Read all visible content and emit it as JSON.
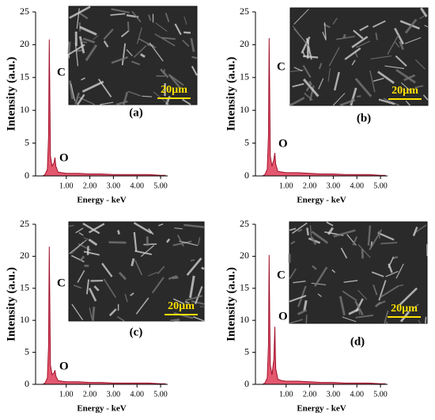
{
  "chart_data": [
    {
      "type": "line",
      "panel_label": "(a)",
      "x_label": "Energy - keV",
      "y_label": "Intensity (a.u.)",
      "annotations": [
        "C",
        "O"
      ],
      "scale_bar": "20µm",
      "color": "#d9203f",
      "xlim": [
        -0.3,
        5.3
      ],
      "xticks": [
        {
          "value": 1,
          "label": "1.00"
        },
        {
          "value": 2,
          "label": "2.00"
        },
        {
          "value": 3,
          "label": "3.00"
        },
        {
          "value": 4,
          "label": "4.00"
        },
        {
          "value": 5,
          "label": "5.00"
        }
      ],
      "ylim": [
        0,
        25
      ],
      "yticks": [
        0,
        5,
        10,
        15,
        20,
        25
      ],
      "x": [
        0.0,
        0.1,
        0.2,
        0.25,
        0.28,
        0.3,
        0.33,
        0.4,
        0.48,
        0.52,
        0.56,
        0.65,
        0.8,
        1.0,
        1.5,
        2.0,
        2.5,
        3.0,
        3.5,
        4.0,
        4.5,
        5.0,
        5.2
      ],
      "values": [
        0,
        0.2,
        1,
        6,
        20.8,
        14,
        3,
        1.5,
        2,
        2.8,
        1.5,
        0.6,
        0.5,
        0.4,
        0.4,
        0.3,
        0.3,
        0.2,
        0.2,
        0.2,
        0.2,
        0.1,
        0.1
      ]
    },
    {
      "type": "line",
      "panel_label": "(b)",
      "x_label": "Energy - keV",
      "y_label": "Intensity (a.u.)",
      "annotations": [
        "C",
        "O"
      ],
      "scale_bar": "20µm",
      "color": "#d9203f",
      "xlim": [
        -0.3,
        5.3
      ],
      "xticks": [
        {
          "value": 1,
          "label": "1.00"
        },
        {
          "value": 2,
          "label": "2.00"
        },
        {
          "value": 3,
          "label": "3.00"
        },
        {
          "value": 4,
          "label": "4.00"
        },
        {
          "value": 5,
          "label": "5.00"
        }
      ],
      "ylim": [
        0,
        25
      ],
      "yticks": [
        0,
        5,
        10,
        15,
        20,
        25
      ],
      "x": [
        0.0,
        0.1,
        0.2,
        0.25,
        0.28,
        0.3,
        0.33,
        0.4,
        0.48,
        0.52,
        0.56,
        0.65,
        0.8,
        1.0,
        1.5,
        2.0,
        2.5,
        3.0,
        3.5,
        4.0,
        4.5,
        5.0,
        5.2
      ],
      "values": [
        0,
        0.2,
        1,
        6,
        21,
        14,
        3,
        1.5,
        2.5,
        3.5,
        1.8,
        0.7,
        0.6,
        0.5,
        0.5,
        0.4,
        0.3,
        0.3,
        0.2,
        0.2,
        0.2,
        0.1,
        0.1
      ]
    },
    {
      "type": "line",
      "panel_label": "(c)",
      "x_label": "Energy - keV",
      "y_label": "Intensity (a.u.)",
      "annotations": [
        "C",
        "O"
      ],
      "scale_bar": "20µm",
      "color": "#d9203f",
      "xlim": [
        -0.3,
        5.3
      ],
      "xticks": [
        {
          "value": 1,
          "label": "1.00"
        },
        {
          "value": 2,
          "label": "2.00"
        },
        {
          "value": 3,
          "label": "3.00"
        },
        {
          "value": 4,
          "label": "4.00"
        },
        {
          "value": 5,
          "label": "5.00"
        }
      ],
      "ylim": [
        0,
        25
      ],
      "yticks": [
        0,
        5,
        10,
        15,
        20,
        25
      ],
      "x": [
        0.0,
        0.1,
        0.2,
        0.25,
        0.28,
        0.3,
        0.33,
        0.4,
        0.48,
        0.52,
        0.56,
        0.65,
        0.8,
        1.0,
        1.5,
        2.0,
        2.5,
        3.0,
        3.5,
        4.0,
        4.5,
        5.0,
        5.2
      ],
      "values": [
        0,
        0.2,
        1,
        6,
        21.5,
        14,
        3,
        1.5,
        1.8,
        2.2,
        1.3,
        0.6,
        0.5,
        0.4,
        0.4,
        0.3,
        0.3,
        0.2,
        0.2,
        0.2,
        0.2,
        0.1,
        0.1
      ]
    },
    {
      "type": "line",
      "panel_label": "(d)",
      "x_label": "Energy - keV",
      "y_label": "Intensity (a.u.)",
      "annotations": [
        "C",
        "O"
      ],
      "scale_bar": "20µm",
      "color": "#d9203f",
      "xlim": [
        -0.3,
        5.3
      ],
      "xticks": [
        {
          "value": 1,
          "label": "1.00"
        },
        {
          "value": 2,
          "label": "2.00"
        },
        {
          "value": 3,
          "label": "3.00"
        },
        {
          "value": 4,
          "label": "4.00"
        },
        {
          "value": 5,
          "label": "5.00"
        }
      ],
      "ylim": [
        0,
        25
      ],
      "yticks": [
        0,
        5,
        10,
        15,
        20,
        25
      ],
      "x": [
        0.0,
        0.1,
        0.2,
        0.25,
        0.28,
        0.3,
        0.33,
        0.4,
        0.48,
        0.52,
        0.56,
        0.65,
        0.8,
        1.0,
        1.5,
        2.0,
        2.5,
        3.0,
        3.5,
        4.0,
        4.5,
        5.0,
        5.2
      ],
      "values": [
        0,
        0.2,
        1,
        6,
        20.2,
        12,
        3,
        1.5,
        4,
        9,
        2.5,
        0.8,
        0.6,
        0.5,
        0.5,
        0.4,
        0.3,
        0.3,
        0.2,
        0.2,
        0.2,
        0.1,
        0.1
      ]
    }
  ]
}
